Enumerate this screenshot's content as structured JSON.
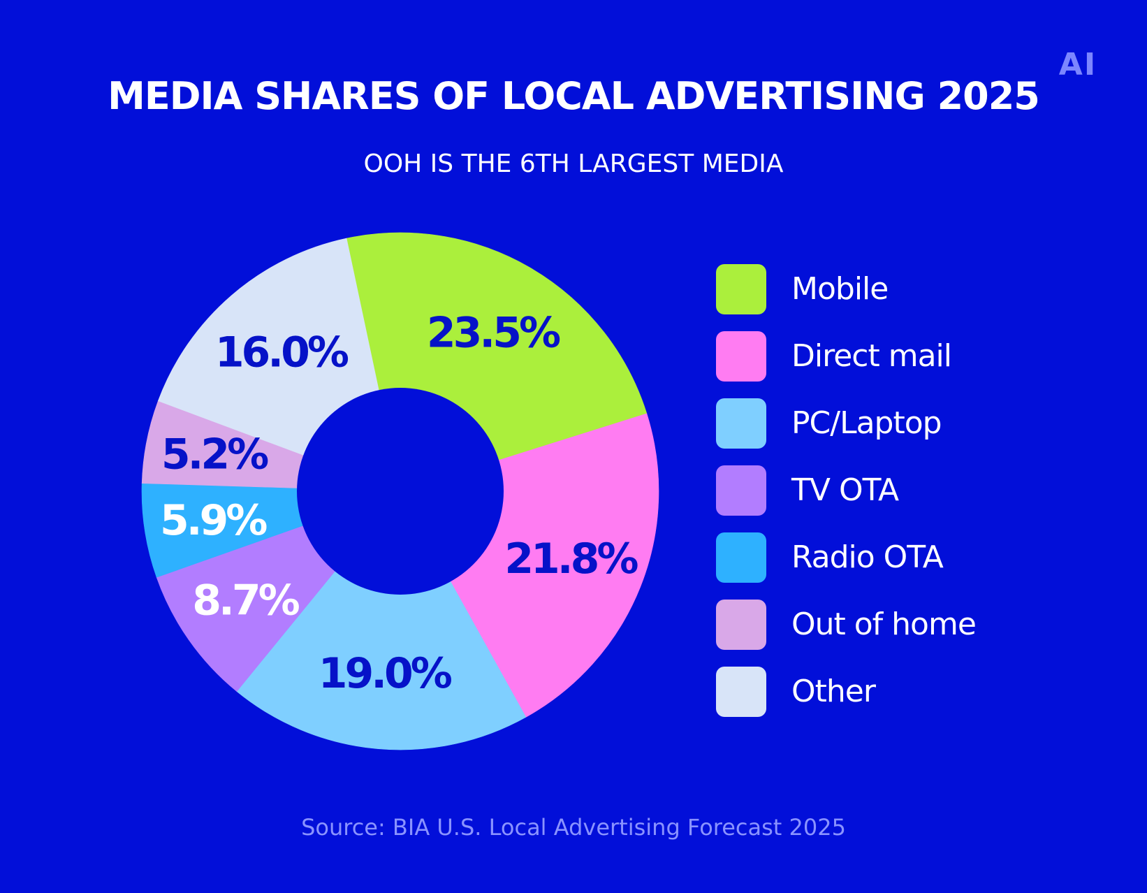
{
  "header": {
    "title": "MEDIA SHARES OF LOCAL ADVERTISING 2025",
    "subtitle": "OOH IS THE 6TH LARGEST MEDIA",
    "logo_text": "AI"
  },
  "footer": {
    "source": "Source: BIA U.S. Local Advertising Forecast 2025"
  },
  "colors": {
    "background": "#020fd9",
    "dark_label": "#0612c8",
    "light_label": "#ffffff"
  },
  "chart_data": {
    "type": "pie",
    "donut": true,
    "legend_position": "right",
    "title": "MEDIA SHARES OF LOCAL ADVERTISING 2025",
    "subtitle": "OOH IS THE 6TH LARGEST MEDIA",
    "slices": [
      {
        "name": "Mobile",
        "value": 23.5,
        "label": "23.5%",
        "color": "#abef3c",
        "label_color": "dark"
      },
      {
        "name": "Direct mail",
        "value": 21.8,
        "label": "21.8%",
        "color": "#ff7cf2",
        "label_color": "dark"
      },
      {
        "name": "PC/Laptop",
        "value": 19.0,
        "label": "19.0%",
        "color": "#7fcfff",
        "label_color": "dark"
      },
      {
        "name": "TV OTA",
        "value": 8.7,
        "label": "8.7%",
        "color": "#b27dff",
        "label_color": "light"
      },
      {
        "name": "Radio OTA",
        "value": 5.9,
        "label": "5.9%",
        "color": "#2eb1ff",
        "label_color": "light"
      },
      {
        "name": "Out of home",
        "value": 5.2,
        "label": "5.2%",
        "color": "#d9a8e8",
        "label_color": "dark"
      },
      {
        "name": "Other",
        "value": 16.0,
        "label": "16.0%",
        "color": "#d8e4f8",
        "label_color": "dark"
      }
    ]
  }
}
